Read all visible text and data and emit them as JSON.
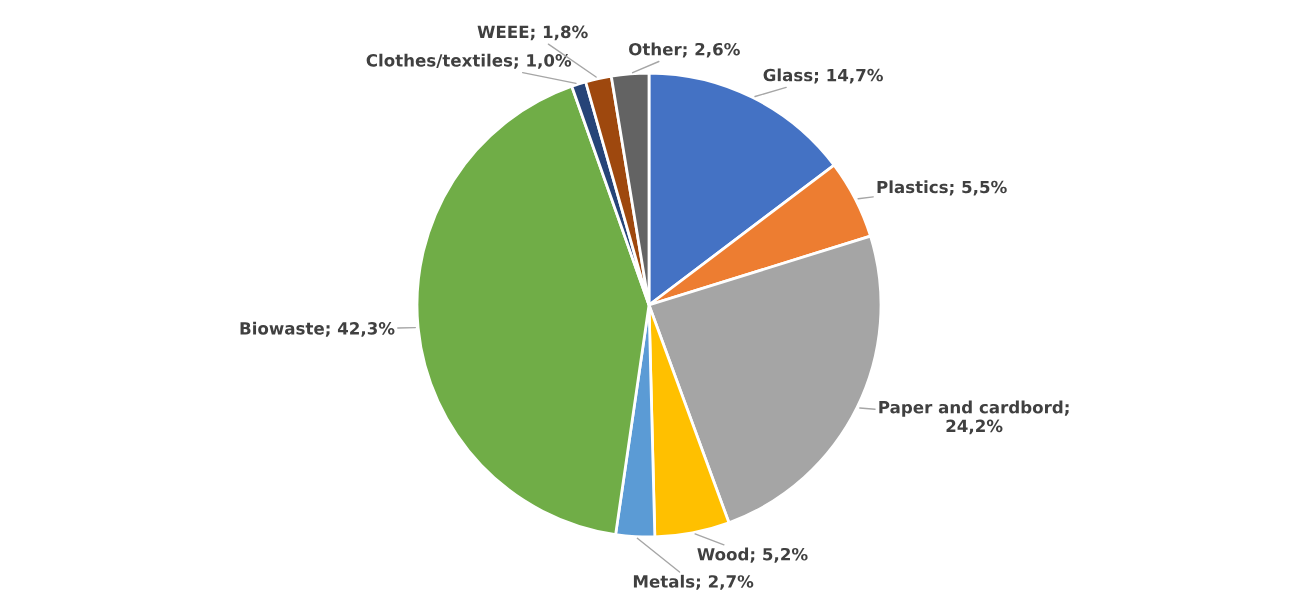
{
  "chart_data": {
    "type": "pie",
    "categories": [
      "Glass",
      "Plastics",
      "Paper and cardbord",
      "Wood",
      "Metals",
      "Biowaste",
      "Clothes/textiles",
      "WEEE",
      "Other"
    ],
    "values": [
      14.7,
      5.5,
      24.2,
      5.2,
      2.7,
      42.3,
      1.0,
      1.8,
      2.6
    ],
    "colors": [
      "#4472c4",
      "#ed7d31",
      "#a5a5a5",
      "#ffc000",
      "#5b9bd5",
      "#70ad47",
      "#264478",
      "#9e480e",
      "#636363"
    ],
    "value_labels": [
      "; 14,7%",
      "; 5,5%",
      "; 24,2%",
      "; 5,2%",
      "; 2,7%",
      "; 42,3%",
      "; 1,0%",
      "; 1,8%",
      "; 2,6%"
    ],
    "legend": false
  }
}
